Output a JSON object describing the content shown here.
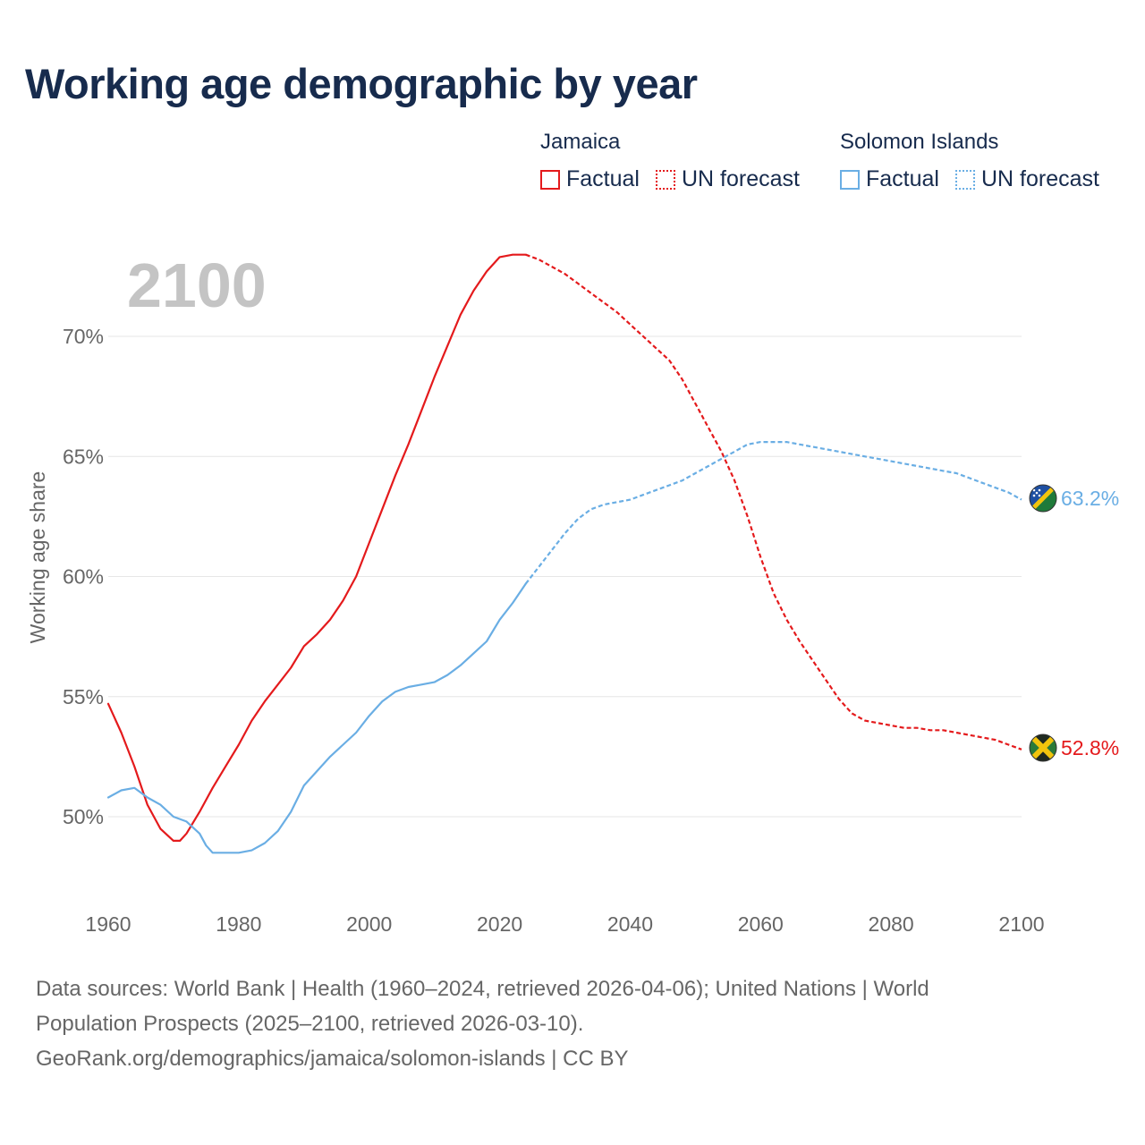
{
  "title": "Working age demographic by year",
  "legend": {
    "groups": [
      {
        "name": "Jamaica",
        "color": "#e41a1c",
        "factual_label": "Factual",
        "forecast_label": "UN forecast"
      },
      {
        "name": "Solomon Islands",
        "color": "#6aaee4",
        "factual_label": "Factual",
        "forecast_label": "UN forecast"
      }
    ]
  },
  "year_watermark": "2100",
  "end_labels": {
    "jamaica": "52.8%",
    "solomon_islands": "63.2%"
  },
  "sources": {
    "line1": "Data sources: World Bank | Health (1960–2024, retrieved 2026-04-06); United Nations | World",
    "line2": "Population Prospects (2025–2100, retrieved 2026-03-10).",
    "line3": "GeoRank.org/demographics/jamaica/solomon-islands | CC BY"
  },
  "chart_data": {
    "type": "line",
    "ylabel": "Working age share",
    "xlabel": "",
    "xlim": [
      1960,
      2100
    ],
    "ylim": [
      46,
      75
    ],
    "x_ticks": [
      1960,
      1980,
      2000,
      2020,
      2040,
      2060,
      2080,
      2100
    ],
    "x_tick_labels": [
      "1960",
      "1980",
      "2000",
      "2020",
      "2040",
      "2060",
      "2080",
      "2100"
    ],
    "y_ticks": [
      50,
      55,
      60,
      65,
      70
    ],
    "y_tick_labels": [
      "50%",
      "55%",
      "60%",
      "65%",
      "70%"
    ],
    "factual_end_year": 2024,
    "series": [
      {
        "name": "Jamaica",
        "color": "#e41a1c",
        "x": [
          1960,
          1962,
          1964,
          1966,
          1968,
          1970,
          1971,
          1972,
          1974,
          1976,
          1978,
          1980,
          1982,
          1984,
          1986,
          1988,
          1990,
          1992,
          1994,
          1996,
          1998,
          2000,
          2002,
          2004,
          2006,
          2008,
          2010,
          2012,
          2014,
          2016,
          2018,
          2020,
          2022,
          2024,
          2026,
          2028,
          2030,
          2032,
          2034,
          2036,
          2038,
          2040,
          2042,
          2044,
          2046,
          2048,
          2050,
          2052,
          2054,
          2056,
          2058,
          2060,
          2062,
          2064,
          2066,
          2068,
          2070,
          2072,
          2074,
          2076,
          2078,
          2080,
          2082,
          2084,
          2086,
          2088,
          2090,
          2092,
          2094,
          2096,
          2098,
          2100
        ],
        "values": [
          54.7,
          53.5,
          52.1,
          50.5,
          49.5,
          49.0,
          49.0,
          49.3,
          50.2,
          51.2,
          52.1,
          53.0,
          54.0,
          54.8,
          55.5,
          56.2,
          57.1,
          57.6,
          58.2,
          59.0,
          60.0,
          61.4,
          62.8,
          64.2,
          65.5,
          66.9,
          68.3,
          69.6,
          70.9,
          71.9,
          72.7,
          73.3,
          73.4,
          73.4,
          73.2,
          72.9,
          72.6,
          72.2,
          71.8,
          71.4,
          71.0,
          70.5,
          70.0,
          69.5,
          69.0,
          68.2,
          67.2,
          66.2,
          65.2,
          64.0,
          62.5,
          60.8,
          59.3,
          58.2,
          57.3,
          56.5,
          55.7,
          54.9,
          54.3,
          54.0,
          53.9,
          53.8,
          53.7,
          53.7,
          53.6,
          53.6,
          53.5,
          53.4,
          53.3,
          53.2,
          53.0,
          52.8
        ]
      },
      {
        "name": "Solomon Islands",
        "color": "#6aaee4",
        "x": [
          1960,
          1962,
          1964,
          1966,
          1968,
          1970,
          1972,
          1974,
          1975,
          1976,
          1978,
          1980,
          1982,
          1984,
          1986,
          1988,
          1990,
          1992,
          1994,
          1996,
          1998,
          2000,
          2002,
          2004,
          2006,
          2008,
          2010,
          2012,
          2014,
          2016,
          2018,
          2020,
          2022,
          2024,
          2026,
          2028,
          2030,
          2032,
          2034,
          2036,
          2038,
          2040,
          2042,
          2044,
          2046,
          2048,
          2050,
          2052,
          2054,
          2056,
          2058,
          2060,
          2062,
          2064,
          2066,
          2068,
          2070,
          2072,
          2074,
          2076,
          2078,
          2080,
          2082,
          2084,
          2086,
          2088,
          2090,
          2092,
          2094,
          2096,
          2098,
          2100
        ],
        "values": [
          50.8,
          51.1,
          51.2,
          50.8,
          50.5,
          50.0,
          49.8,
          49.3,
          48.8,
          48.5,
          48.5,
          48.5,
          48.6,
          48.9,
          49.4,
          50.2,
          51.3,
          51.9,
          52.5,
          53.0,
          53.5,
          54.2,
          54.8,
          55.2,
          55.4,
          55.5,
          55.6,
          55.9,
          56.3,
          56.8,
          57.3,
          58.2,
          58.9,
          59.7,
          60.4,
          61.1,
          61.8,
          62.4,
          62.8,
          63.0,
          63.1,
          63.2,
          63.4,
          63.6,
          63.8,
          64.0,
          64.3,
          64.6,
          64.9,
          65.2,
          65.5,
          65.6,
          65.6,
          65.6,
          65.5,
          65.4,
          65.3,
          65.2,
          65.1,
          65.0,
          64.9,
          64.8,
          64.7,
          64.6,
          64.5,
          64.4,
          64.3,
          64.1,
          63.9,
          63.7,
          63.5,
          63.2
        ]
      }
    ]
  }
}
